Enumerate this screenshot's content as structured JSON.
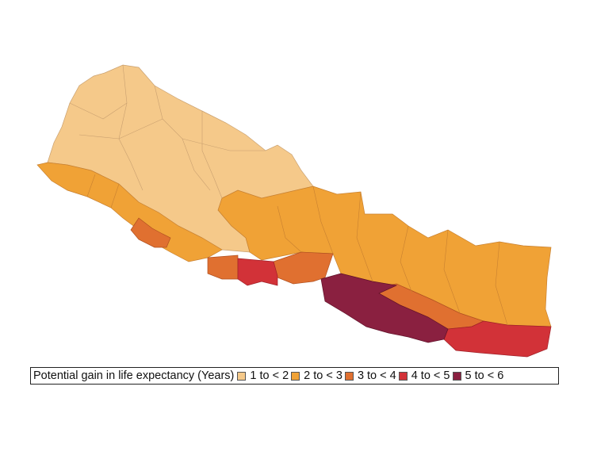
{
  "legend": {
    "title": "Potential gain in life expectancy (Years)",
    "items": [
      {
        "label": "1 to < 2",
        "color": "#f5c98a"
      },
      {
        "label": "2 to < 3",
        "color": "#f0a236"
      },
      {
        "label": "3 to < 4",
        "color": "#e07030"
      },
      {
        "label": "4 to < 5",
        "color": "#d23238"
      },
      {
        "label": "5 to < 6",
        "color": "#8a2040"
      }
    ]
  },
  "regions": [
    {
      "class": 0,
      "color": "#f5c98a"
    },
    {
      "class": 1,
      "color": "#f0a236"
    },
    {
      "class": 2,
      "color": "#e07030"
    },
    {
      "class": 3,
      "color": "#d23238"
    },
    {
      "class": 4,
      "color": "#8a2040"
    }
  ]
}
